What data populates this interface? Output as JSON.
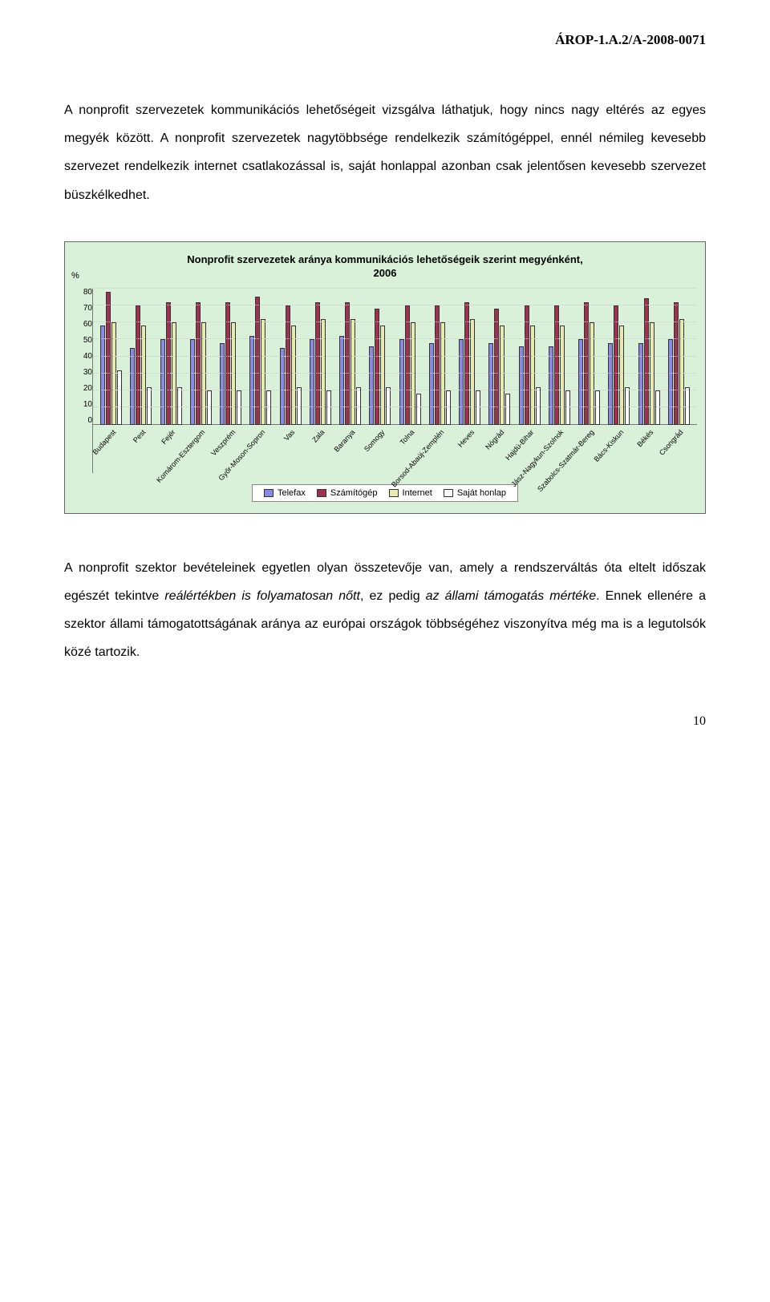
{
  "header": {
    "code": "ÁROP-1.A.2/A-2008-0071"
  },
  "paragraphs": {
    "p1": "A nonprofit szervezetek kommunikációs lehetőségeit vizsgálva láthatjuk, hogy nincs nagy eltérés az egyes megyék között. A nonprofit szervezetek nagytöbbsége rendelkezik számítógéppel, ennél némileg kevesebb szervezet rendelkezik internet csatlakozással is, saját honlappal azonban csak jelentősen kevesebb szervezet büszkélkedhet.",
    "p2a": "A nonprofit szektor bevételeinek egyetlen olyan összetevője van, amely a rendszerváltás óta eltelt időszak egészét tekintve ",
    "p2b": "reálértékben is folyamatosan nőtt",
    "p2c": ", ez pedig ",
    "p2d": "az állami támogatás mértéke",
    "p2e": ". Ennek ellenére a szektor állami támogatottságának aránya az európai országok többségéhez viszonyítva még ma is a legutolsók közé tartozik."
  },
  "chart": {
    "title_line1": "Nonprofit szervezetek aránya kommunikációs lehetőségeik szerint megyénként,",
    "title_line2": "2006",
    "y_label": "%",
    "y_ticks": [
      0,
      10,
      20,
      30,
      40,
      50,
      60,
      70,
      80
    ],
    "y_max": 80,
    "background": "#d9f0d9",
    "grid_color": "#cccccc",
    "series": [
      {
        "name": "Telefax",
        "color": "#8a8ae6"
      },
      {
        "name": "Számítógép",
        "color": "#a03050"
      },
      {
        "name": "Internet",
        "color": "#e8eab0"
      },
      {
        "name": "Saját honlap",
        "color": "#ffffff"
      }
    ],
    "categories": [
      {
        "label": "Budapest",
        "values": [
          58,
          78,
          60,
          32
        ]
      },
      {
        "label": "Pest",
        "values": [
          45,
          70,
          58,
          22
        ]
      },
      {
        "label": "Fejér",
        "values": [
          50,
          72,
          60,
          22
        ]
      },
      {
        "label": "Komárom-Esztergom",
        "values": [
          50,
          72,
          60,
          20
        ]
      },
      {
        "label": "Veszprém",
        "values": [
          48,
          72,
          60,
          20
        ]
      },
      {
        "label": "Győr-Moson-Sopron",
        "values": [
          52,
          75,
          62,
          20
        ]
      },
      {
        "label": "Vas",
        "values": [
          45,
          70,
          58,
          22
        ]
      },
      {
        "label": "Zala",
        "values": [
          50,
          72,
          62,
          20
        ]
      },
      {
        "label": "Baranya",
        "values": [
          52,
          72,
          62,
          22
        ]
      },
      {
        "label": "Somogy",
        "values": [
          46,
          68,
          58,
          22
        ]
      },
      {
        "label": "Tolna",
        "values": [
          50,
          70,
          60,
          18
        ]
      },
      {
        "label": "Borsod-Abaúj-Zemplén",
        "values": [
          48,
          70,
          60,
          20
        ]
      },
      {
        "label": "Heves",
        "values": [
          50,
          72,
          62,
          20
        ]
      },
      {
        "label": "Nógrád",
        "values": [
          48,
          68,
          58,
          18
        ]
      },
      {
        "label": "Hajdú-Bihar",
        "values": [
          46,
          70,
          58,
          22
        ]
      },
      {
        "label": "Jász-Nagykun-Szolnok",
        "values": [
          46,
          70,
          58,
          20
        ]
      },
      {
        "label": "Szabolcs-Szatmár-Bereg",
        "values": [
          50,
          72,
          60,
          20
        ]
      },
      {
        "label": "Bács-Kiskun",
        "values": [
          48,
          70,
          58,
          22
        ]
      },
      {
        "label": "Békés",
        "values": [
          48,
          74,
          60,
          20
        ]
      },
      {
        "label": "Csongrád",
        "values": [
          50,
          72,
          62,
          22
        ]
      }
    ]
  },
  "page_number": "10"
}
